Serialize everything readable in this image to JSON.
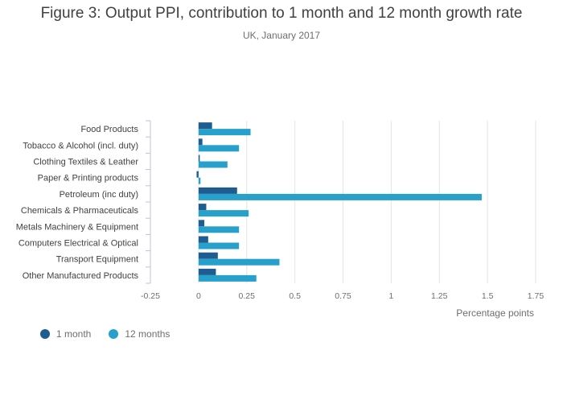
{
  "title": "Figure 3: Output PPI, contribution to 1 month and 12 month growth rate",
  "subtitle": "UK, January 2017",
  "colors": {
    "one_month": "#1f5d91",
    "twelve_months": "#27a0cc",
    "grid": "#e4e4e4",
    "axis": "#bdc3d6"
  },
  "chart_data": {
    "type": "bar",
    "orientation": "horizontal",
    "categories": [
      "Food Products",
      "Tobacco & Alcohol (incl. duty)",
      "Clothing Textiles & Leather",
      "Paper & Printing products",
      "Petroleum (inc duty)",
      "Chemicals & Pharmaceuticals",
      "Metals Machinery & Equipment",
      "Computers Electrical & Optical",
      "Transport Equipment",
      "Other Manufactured Products"
    ],
    "series": [
      {
        "name": "1 month",
        "values": [
          0.07,
          0.02,
          0.0,
          -0.01,
          0.2,
          0.04,
          0.03,
          0.05,
          0.1,
          0.09
        ]
      },
      {
        "name": "12 months",
        "values": [
          0.27,
          0.21,
          0.15,
          0.01,
          1.47,
          0.26,
          0.21,
          0.21,
          0.42,
          0.3
        ]
      }
    ],
    "xlim": [
      -0.25,
      1.75
    ],
    "xticks": [
      -0.25,
      0,
      0.25,
      0.5,
      0.75,
      1,
      1.25,
      1.5,
      1.75
    ],
    "xtick_labels": [
      "-0.25",
      "0",
      "0.25",
      "0.5",
      "0.75",
      "1",
      "1.25",
      "1.5",
      "1.75"
    ],
    "xlabel": "Percentage points",
    "ylabel": "",
    "grid": true,
    "legend": "bottom-left"
  }
}
